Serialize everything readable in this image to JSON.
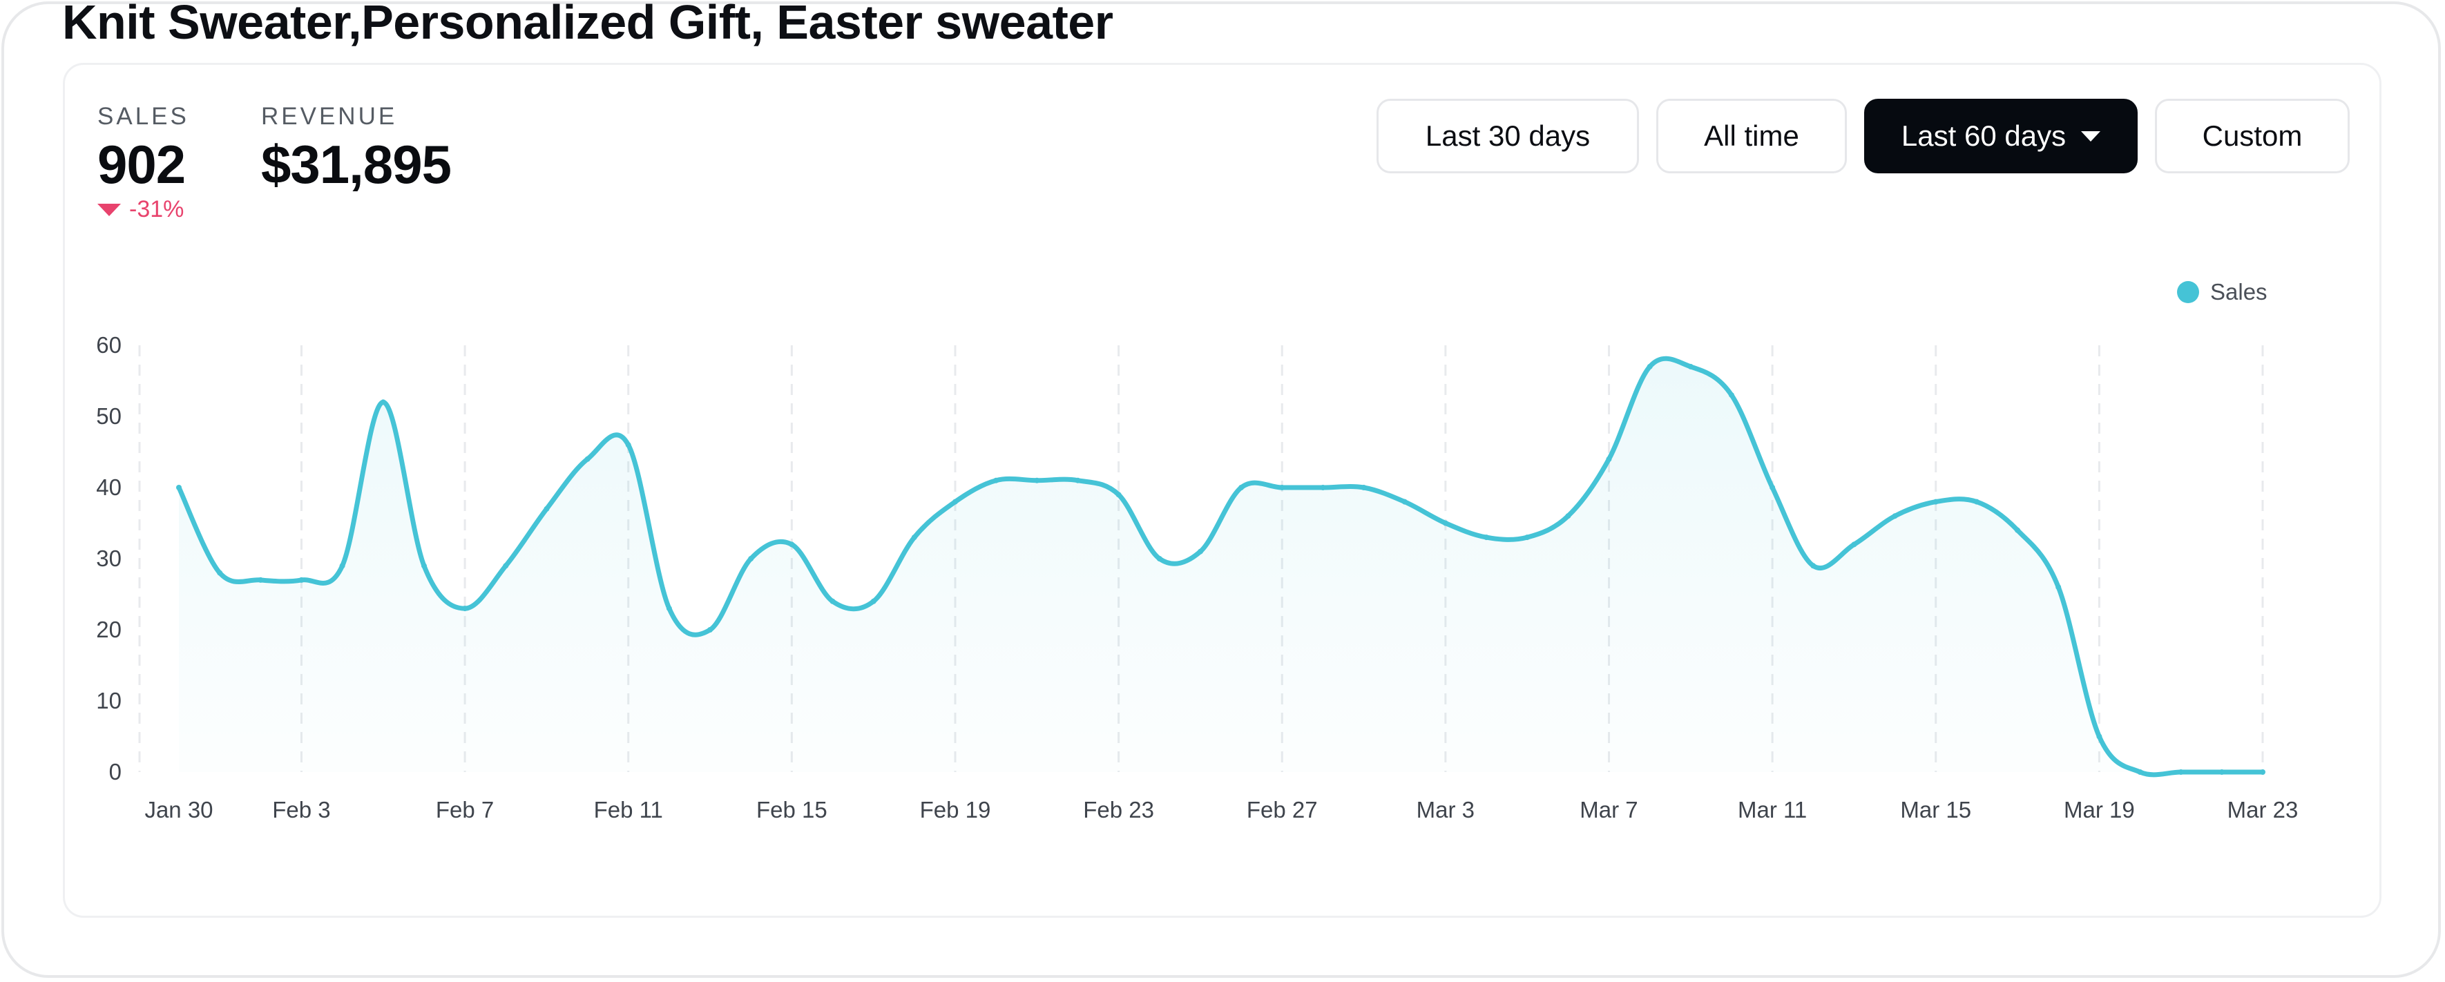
{
  "title": "Knit Sweater,Personalized Gift, Easter sweater",
  "stats": {
    "sales": {
      "label": "SALES",
      "value": "902",
      "change": "-31%"
    },
    "revenue": {
      "label": "REVENUE",
      "value": "$31,895"
    }
  },
  "range_buttons": {
    "last30": "Last 30 days",
    "all_time": "All time",
    "last60": "Last 60 days",
    "custom": "Custom",
    "selected": "Last 60 days"
  },
  "colors": {
    "series": "#45c3d6",
    "negative_change": "#e8436d",
    "active_button": "#060a10"
  },
  "icons": {
    "change_indicator": "triangle-down-icon",
    "dropdown": "chevron-down-icon"
  },
  "chart_data": {
    "type": "area",
    "title": "",
    "xlabel": "",
    "ylabel": "",
    "ylim": [
      0,
      60
    ],
    "yticks": [
      0,
      10,
      20,
      30,
      40,
      50,
      60
    ],
    "xtick_labels": [
      "Jan 30",
      "Feb 3",
      "Feb 7",
      "Feb 11",
      "Feb 15",
      "Feb 19",
      "Feb 23",
      "Feb 27",
      "Mar 3",
      "Mar 7",
      "Mar 11",
      "Mar 15",
      "Mar 19",
      "Mar 23"
    ],
    "legend": {
      "position": "top-right"
    },
    "grid": {
      "vertical": true,
      "horizontal": false
    },
    "series": [
      {
        "name": "Sales",
        "points": [
          [
            "Jan 30",
            40
          ],
          [
            "Feb 1",
            28
          ],
          [
            "Feb 2",
            27
          ],
          [
            "Feb 3",
            27
          ],
          [
            "Feb 4",
            29
          ],
          [
            "Feb 5",
            52
          ],
          [
            "Feb 6",
            29
          ],
          [
            "Feb 7",
            23
          ],
          [
            "Feb 8",
            29
          ],
          [
            "Feb 9",
            37
          ],
          [
            "Feb 10",
            44
          ],
          [
            "Feb 11",
            46
          ],
          [
            "Feb 12",
            23
          ],
          [
            "Feb 13",
            20
          ],
          [
            "Feb 14",
            30
          ],
          [
            "Feb 15",
            32
          ],
          [
            "Feb 16",
            24
          ],
          [
            "Feb 17",
            24
          ],
          [
            "Feb 18",
            33
          ],
          [
            "Feb 19",
            38
          ],
          [
            "Feb 20",
            41
          ],
          [
            "Feb 21",
            41
          ],
          [
            "Feb 22",
            41
          ],
          [
            "Feb 23",
            39
          ],
          [
            "Feb 24",
            30
          ],
          [
            "Feb 25",
            31
          ],
          [
            "Feb 26",
            40
          ],
          [
            "Feb 27",
            40
          ],
          [
            "Feb 28",
            40
          ],
          [
            "Mar 1",
            40
          ],
          [
            "Mar 2",
            38
          ],
          [
            "Mar 3",
            35
          ],
          [
            "Mar 4",
            33
          ],
          [
            "Mar 5",
            33
          ],
          [
            "Mar 6",
            36
          ],
          [
            "Mar 7",
            44
          ],
          [
            "Mar 8",
            57
          ],
          [
            "Mar 9",
            57
          ],
          [
            "Mar 10",
            53
          ],
          [
            "Mar 11",
            40
          ],
          [
            "Mar 12",
            29
          ],
          [
            "Mar 13",
            32
          ],
          [
            "Mar 14",
            36
          ],
          [
            "Mar 15",
            38
          ],
          [
            "Mar 16",
            38
          ],
          [
            "Mar 17",
            34
          ],
          [
            "Mar 18",
            26
          ],
          [
            "Mar 19",
            5
          ],
          [
            "Mar 20",
            0
          ],
          [
            "Mar 21",
            0
          ],
          [
            "Mar 22",
            0
          ],
          [
            "Mar 23",
            0
          ]
        ]
      }
    ]
  }
}
